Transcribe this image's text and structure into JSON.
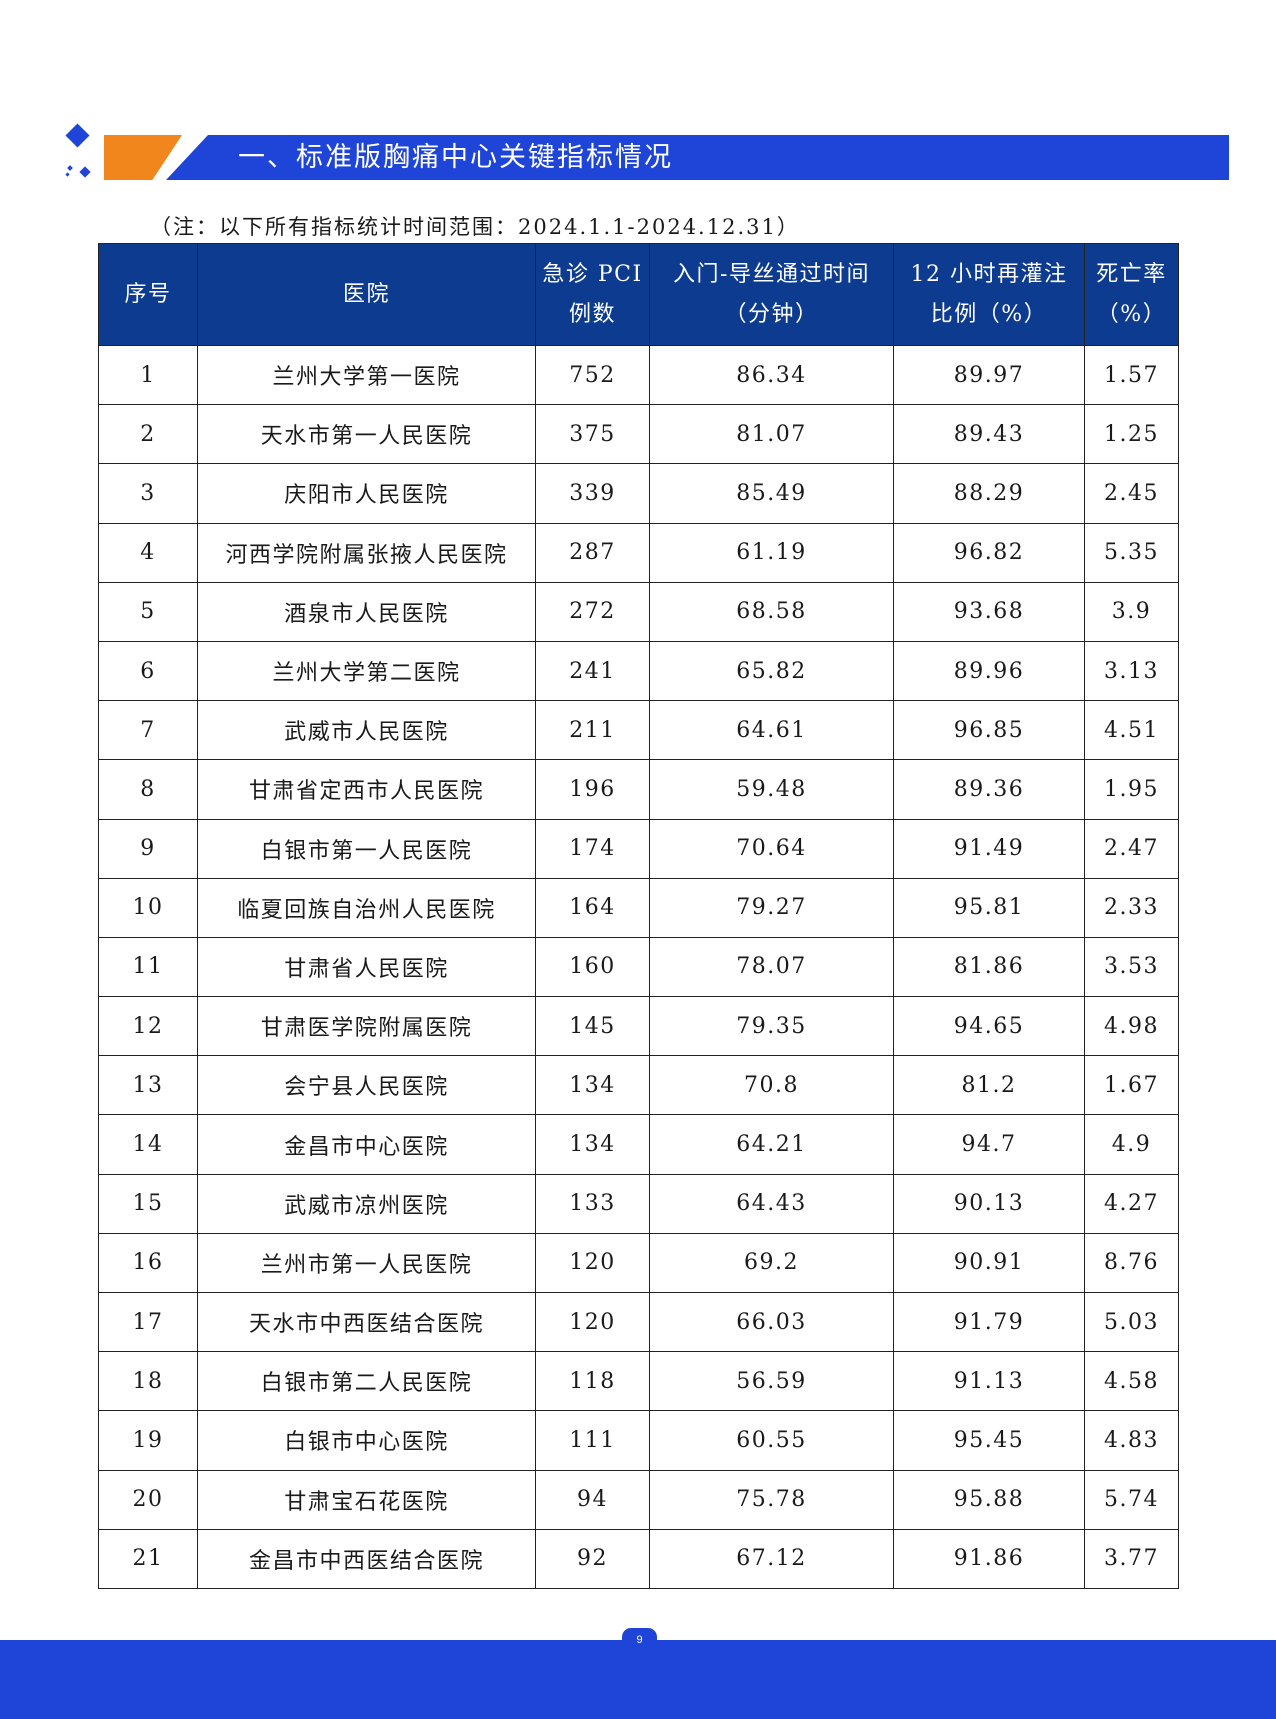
{
  "heading": {
    "title": "一、标准版胸痛中心关键指标情况"
  },
  "note": "（注：以下所有指标统计时间范围：2024.1.1-2024.12.31）",
  "table": {
    "headers": [
      {
        "line1": "序号",
        "line2": ""
      },
      {
        "line1": "医院",
        "line2": ""
      },
      {
        "line1": "急诊 PCI",
        "line2": "例数"
      },
      {
        "line1": "入门-导丝通过时间",
        "line2": "（分钟）"
      },
      {
        "line1": "12 小时再灌注",
        "line2": "比例（%）"
      },
      {
        "line1": "死亡率",
        "line2": "（%）"
      }
    ],
    "rows": [
      [
        "1",
        "兰州大学第一医院",
        "752",
        "86.34",
        "89.97",
        "1.57"
      ],
      [
        "2",
        "天水市第一人民医院",
        "375",
        "81.07",
        "89.43",
        "1.25"
      ],
      [
        "3",
        "庆阳市人民医院",
        "339",
        "85.49",
        "88.29",
        "2.45"
      ],
      [
        "4",
        "河西学院附属张掖人民医院",
        "287",
        "61.19",
        "96.82",
        "5.35"
      ],
      [
        "5",
        "酒泉市人民医院",
        "272",
        "68.58",
        "93.68",
        "3.9"
      ],
      [
        "6",
        "兰州大学第二医院",
        "241",
        "65.82",
        "89.96",
        "3.13"
      ],
      [
        "7",
        "武威市人民医院",
        "211",
        "64.61",
        "96.85",
        "4.51"
      ],
      [
        "8",
        "甘肃省定西市人民医院",
        "196",
        "59.48",
        "89.36",
        "1.95"
      ],
      [
        "9",
        "白银市第一人民医院",
        "174",
        "70.64",
        "91.49",
        "2.47"
      ],
      [
        "10",
        "临夏回族自治州人民医院",
        "164",
        "79.27",
        "95.81",
        "2.33"
      ],
      [
        "11",
        "甘肃省人民医院",
        "160",
        "78.07",
        "81.86",
        "3.53"
      ],
      [
        "12",
        "甘肃医学院附属医院",
        "145",
        "79.35",
        "94.65",
        "4.98"
      ],
      [
        "13",
        "会宁县人民医院",
        "134",
        "70.8",
        "81.2",
        "1.67"
      ],
      [
        "14",
        "金昌市中心医院",
        "134",
        "64.21",
        "94.7",
        "4.9"
      ],
      [
        "15",
        "武威市凉州医院",
        "133",
        "64.43",
        "90.13",
        "4.27"
      ],
      [
        "16",
        "兰州市第一人民医院",
        "120",
        "69.2",
        "90.91",
        "8.76"
      ],
      [
        "17",
        "天水市中西医结合医院",
        "120",
        "66.03",
        "91.79",
        "5.03"
      ],
      [
        "18",
        "白银市第二人民医院",
        "118",
        "56.59",
        "91.13",
        "4.58"
      ],
      [
        "19",
        "白银市中心医院",
        "111",
        "60.55",
        "95.45",
        "4.83"
      ],
      [
        "20",
        "甘肃宝石花医院",
        "94",
        "75.78",
        "95.88",
        "5.74"
      ],
      [
        "21",
        "金昌市中西医结合医院",
        "92",
        "67.12",
        "91.86",
        "3.77"
      ]
    ]
  },
  "footer": {
    "page_number": "9"
  },
  "colors": {
    "brand_blue": "#1f45d8",
    "header_navy": "#0d3b8f",
    "accent_orange": "#f0861c"
  }
}
